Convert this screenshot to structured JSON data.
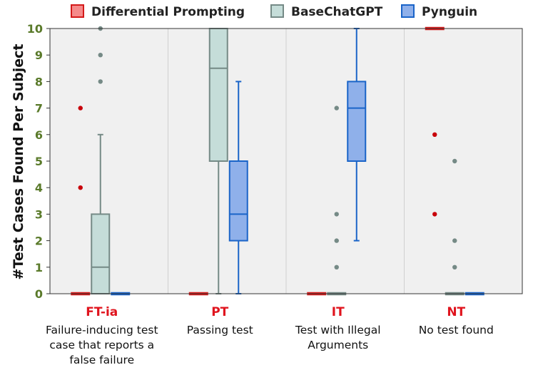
{
  "chart_data": {
    "type": "box",
    "ylabel": "#Test Cases Found Per Subject",
    "ylim": [
      0,
      10
    ],
    "yticks": [
      "0",
      "1",
      "2",
      "3",
      "4",
      "5",
      "6",
      "7",
      "8",
      "9",
      "10"
    ],
    "grid": true,
    "legend_position": "top",
    "categories": [
      {
        "code": "FT-ia",
        "desc": [
          "Failure-inducing test",
          "case that reports a",
          "false failure"
        ]
      },
      {
        "code": "PT",
        "desc": [
          "Passing test"
        ]
      },
      {
        "code": "IT",
        "desc": [
          "Test with Illegal",
          "Arguments"
        ]
      },
      {
        "code": "NT",
        "desc": [
          "No test found"
        ]
      }
    ],
    "series": [
      {
        "name": "Differential Prompting",
        "fill": "#f58a8a",
        "stroke": "#d41a1a",
        "flier": "#c8000a",
        "boxes": [
          {
            "min": 0,
            "q1": 0,
            "median": 0,
            "q3": 0,
            "max": 0,
            "outliers": [
              4,
              7
            ]
          },
          {
            "min": 0,
            "q1": 0,
            "median": 0,
            "q3": 0,
            "max": 0,
            "outliers": []
          },
          {
            "min": 0,
            "q1": 0,
            "median": 0,
            "q3": 0,
            "max": 0,
            "outliers": []
          },
          {
            "min": 10,
            "q1": 10,
            "median": 10,
            "q3": 10,
            "max": 10,
            "outliers": [
              3,
              6
            ]
          }
        ]
      },
      {
        "name": "BaseChatGPT",
        "fill": "#c5ddd9",
        "stroke": "#758a86",
        "flier": "#758a86",
        "boxes": [
          {
            "min": 0,
            "q1": 0,
            "median": 1,
            "q3": 3,
            "max": 6,
            "outliers": [
              8,
              9,
              10
            ]
          },
          {
            "min": 0,
            "q1": 5,
            "median": 8.5,
            "q3": 10,
            "max": 10,
            "outliers": []
          },
          {
            "min": 0,
            "q1": 0,
            "median": 0,
            "q3": 0,
            "max": 0,
            "outliers": [
              1,
              2,
              3,
              7
            ]
          },
          {
            "min": 0,
            "q1": 0,
            "median": 0,
            "q3": 0,
            "max": 0,
            "outliers": [
              1,
              2,
              5
            ]
          }
        ]
      },
      {
        "name": "Pynguin",
        "fill": "#8fb0ea",
        "stroke": "#1a64c8",
        "flier": "#1a64c8",
        "boxes": [
          {
            "min": 0,
            "q1": 0,
            "median": 0,
            "q3": 0,
            "max": 0,
            "outliers": []
          },
          {
            "min": 0,
            "q1": 2,
            "median": 3,
            "q3": 5,
            "max": 8,
            "outliers": []
          },
          {
            "min": 2,
            "q1": 5,
            "median": 7,
            "q3": 8,
            "max": 10,
            "outliers": []
          },
          {
            "min": 0,
            "q1": 0,
            "median": 0,
            "q3": 0,
            "max": 0,
            "outliers": []
          }
        ]
      }
    ]
  }
}
